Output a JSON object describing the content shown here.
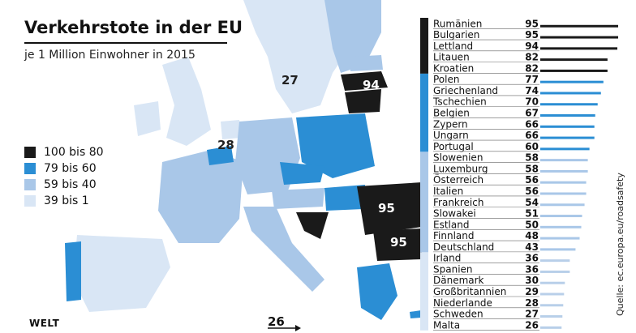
{
  "title": "Verkehrstote in der EU",
  "subtitle": "je 1 Million Einwohner in 2015",
  "logo": "WELT",
  "source": "Quelle: ec.europa.eu/roadsafety",
  "colors": {
    "dark": "#1a1a1a",
    "blue_mid": "#2b8ed4",
    "blue_light": "#a9c7e8",
    "blue_pale": "#d9e6f5",
    "sea": "#ffffff"
  },
  "legend": [
    {
      "label": "100 bis 80",
      "color": "#1a1a1a"
    },
    {
      "label": "79 bis 60",
      "color": "#2b8ed4"
    },
    {
      "label": "59 bis 40",
      "color": "#a9c7e8"
    },
    {
      "label": "39 bis 1",
      "color": "#d9e6f5"
    }
  ],
  "map_labels": [
    {
      "text": "27",
      "country": "Schweden"
    },
    {
      "text": "94",
      "country": "Lettland"
    },
    {
      "text": "28",
      "country": "Niederlande"
    },
    {
      "text": "95",
      "country": "Rumänien"
    },
    {
      "text": "95",
      "country": "Bulgarien"
    },
    {
      "text": "26",
      "country": "Malta"
    }
  ],
  "chart_data": {
    "type": "bar",
    "orientation": "horizontal",
    "categories": [
      "Rumänien",
      "Bulgarien",
      "Lettland",
      "Litauen",
      "Kroatien",
      "Polen",
      "Griechenland",
      "Tschechien",
      "Belgien",
      "Zypern",
      "Ungarn",
      "Portugal",
      "Slowenien",
      "Luxemburg",
      "Österreich",
      "Italien",
      "Frankreich",
      "Slowakei",
      "Estland",
      "Finnland",
      "Deutschland",
      "Irland",
      "Spanien",
      "Dänemark",
      "Großbritannien",
      "Niederlande",
      "Schweden",
      "Malta"
    ],
    "values": [
      95,
      95,
      94,
      82,
      82,
      77,
      74,
      70,
      67,
      66,
      66,
      60,
      58,
      58,
      56,
      56,
      54,
      51,
      50,
      48,
      43,
      36,
      36,
      30,
      29,
      28,
      27,
      26
    ],
    "groups": [
      {
        "range": "100 bis 80",
        "count": 5,
        "color": "#1a1a1a"
      },
      {
        "range": "79 bis 60",
        "count": 7,
        "color": "#2b8ed4"
      },
      {
        "range": "59 bis 40",
        "count": 9,
        "color": "#a9c7e8"
      },
      {
        "range": "39 bis 1",
        "count": 7,
        "color": "#d9e6f5"
      }
    ],
    "xlim": [
      0,
      95
    ]
  }
}
